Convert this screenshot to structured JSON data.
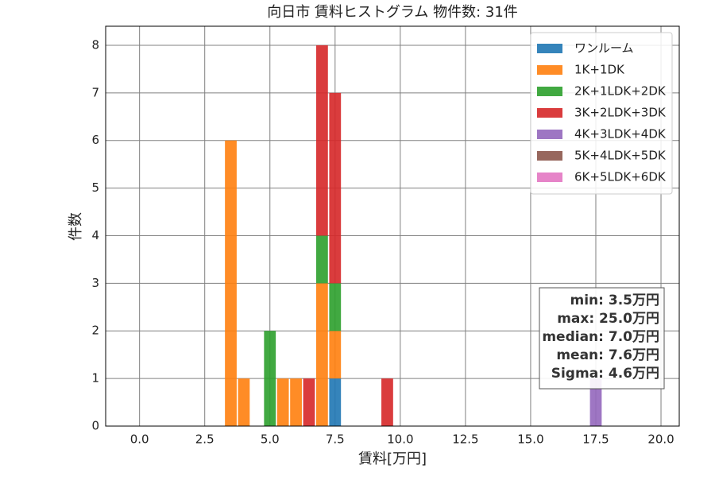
{
  "chart_data": {
    "type": "histogram",
    "stacked": true,
    "title": "向日市 賃料ヒストグラム  物件数: 31件",
    "xlabel": "賃料[万円]",
    "ylabel": "件数",
    "bins": [
      3.25,
      3.75,
      4.25,
      4.75,
      5.25,
      5.75,
      6.25,
      6.75,
      7.25,
      7.75,
      8.25,
      8.75,
      9.25,
      9.75,
      10.25,
      10.75,
      11.25,
      11.75,
      12.25,
      12.75,
      13.25,
      13.75,
      14.25,
      14.75,
      15.25,
      15.75,
      16.25,
      16.75,
      17.25,
      17.75
    ],
    "series": [
      {
        "name": "ワンルーム",
        "color": "#1f77b4",
        "values": [
          0,
          0,
          0,
          0,
          0,
          0,
          0,
          0,
          1,
          0,
          0,
          0,
          0,
          0,
          0,
          0,
          0,
          0,
          0,
          0,
          0,
          0,
          0,
          0,
          0,
          0,
          0,
          0,
          0
        ]
      },
      {
        "name": "1K+1DK",
        "color": "#ff7f0e",
        "values": [
          6,
          1,
          0,
          0,
          1,
          1,
          0,
          3,
          1,
          0,
          0,
          0,
          0,
          0,
          0,
          0,
          0,
          0,
          0,
          0,
          0,
          0,
          0,
          0,
          0,
          0,
          0,
          0,
          0
        ]
      },
      {
        "name": "2K+1LDK+2DK",
        "color": "#2ca02c",
        "values": [
          0,
          0,
          0,
          2,
          0,
          0,
          0,
          1,
          1,
          0,
          0,
          0,
          0,
          0,
          0,
          0,
          0,
          0,
          0,
          0,
          0,
          0,
          0,
          0,
          0,
          0,
          0,
          0,
          0
        ]
      },
      {
        "name": "3K+2LDK+3DK",
        "color": "#d62728",
        "values": [
          0,
          0,
          0,
          0,
          0,
          0,
          1,
          4,
          4,
          0,
          0,
          0,
          1,
          0,
          0,
          0,
          0,
          0,
          0,
          0,
          0,
          0,
          0,
          0,
          0,
          0,
          0,
          0,
          0
        ]
      },
      {
        "name": "4K+3LDK+4DK",
        "color": "#9467bd",
        "values": [
          0,
          0,
          0,
          0,
          0,
          0,
          0,
          0,
          0,
          0,
          0,
          0,
          0,
          0,
          0,
          0,
          0,
          0,
          0,
          0,
          0,
          0,
          0,
          0,
          0,
          0,
          0,
          0,
          1
        ]
      },
      {
        "name": "5K+4LDK+5DK",
        "color": "#8c564b",
        "values": [
          0,
          0,
          0,
          0,
          0,
          0,
          0,
          0,
          0,
          0,
          0,
          0,
          0,
          0,
          0,
          0,
          0,
          0,
          0,
          0,
          0,
          0,
          0,
          0,
          0,
          0,
          0,
          0,
          0
        ]
      },
      {
        "name": "6K+5LDK+6DK",
        "color": "#e377c2",
        "values": [
          0,
          0,
          0,
          0,
          0,
          0,
          0,
          0,
          0,
          0,
          0,
          0,
          0,
          0,
          0,
          0,
          0,
          0,
          0,
          0,
          0,
          0,
          0,
          0,
          0,
          0,
          0,
          0,
          0
        ]
      }
    ],
    "xlim": [
      -1.3,
      20.7
    ],
    "ylim": [
      0,
      8.4
    ],
    "xticks": [
      {
        "value": 0,
        "label": "0.0"
      },
      2.5,
      {
        "value": 5,
        "label": "5.0"
      },
      7.5,
      {
        "value": 10,
        "label": "10.0"
      },
      12.5,
      {
        "value": 15,
        "label": "15.0"
      },
      17.5,
      {
        "value": 20,
        "label": "20.0"
      }
    ],
    "yticks": [
      0,
      1,
      2,
      3,
      4,
      5,
      6,
      7,
      8
    ],
    "grid": true,
    "legend": "upper right",
    "stats": [
      "min: 3.5万円",
      "max: 25.0万円",
      "median: 7.0万円",
      "mean: 7.6万円",
      "Sigma: 4.6万円"
    ]
  }
}
